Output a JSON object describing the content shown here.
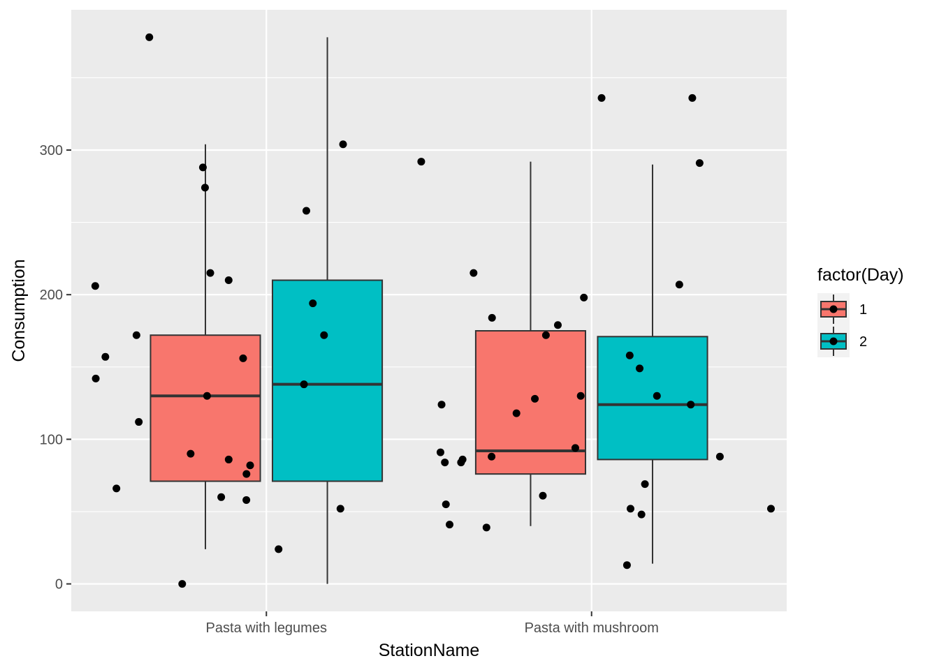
{
  "chart_data": {
    "type": "box",
    "title": "",
    "xlabel": "StationName",
    "ylabel": "Consumption",
    "categories": [
      "Pasta with legumes",
      "Pasta with mushroom"
    ],
    "ylim": [
      -19,
      397
    ],
    "yticks": [
      0,
      100,
      200,
      300
    ],
    "grid": true,
    "legend": {
      "title": "factor(Day)",
      "position": "right",
      "entries": [
        {
          "label": "1",
          "color": "#F8766D"
        },
        {
          "label": "2",
          "color": "#00BFC4"
        }
      ]
    },
    "boxes": [
      {
        "category": "Pasta with legumes",
        "group": "1",
        "whisker_low": 24,
        "q1": 71,
        "median": 130,
        "q3": 172,
        "whisker_high": 304
      },
      {
        "category": "Pasta with legumes",
        "group": "2",
        "whisker_low": 0,
        "q1": 71,
        "median": 138,
        "q3": 210,
        "whisker_high": 378
      },
      {
        "category": "Pasta with mushroom",
        "group": "1",
        "whisker_low": 40,
        "q1": 76,
        "median": 92,
        "q3": 175,
        "whisker_high": 292
      },
      {
        "category": "Pasta with mushroom",
        "group": "2",
        "whisker_low": 14,
        "q1": 86,
        "median": 124,
        "q3": 171,
        "whisker_high": 290
      }
    ],
    "points": [
      {
        "category": "Pasta with legumes",
        "group": "1",
        "y": 288
      },
      {
        "category": "Pasta with legumes",
        "group": "1",
        "y": 60
      },
      {
        "category": "Pasta with legumes",
        "group": "1",
        "y": 157
      },
      {
        "category": "Pasta with legumes",
        "group": "1",
        "y": 112
      },
      {
        "category": "Pasta with legumes",
        "group": "1",
        "y": 90
      },
      {
        "category": "Pasta with legumes",
        "group": "1",
        "y": 130
      },
      {
        "category": "Pasta with legumes",
        "group": "1",
        "y": 142
      },
      {
        "category": "Pasta with legumes",
        "group": "1",
        "y": 138
      },
      {
        "category": "Pasta with legumes",
        "group": "1",
        "y": 210
      },
      {
        "category": "Pasta with legumes",
        "group": "1",
        "y": 0
      },
      {
        "category": "Pasta with legumes",
        "group": "1",
        "y": 378
      },
      {
        "category": "Pasta with legumes",
        "group": "1",
        "y": 24
      },
      {
        "category": "Pasta with legumes",
        "group": "1",
        "y": 58
      },
      {
        "category": "Pasta with legumes",
        "group": "1",
        "y": 206
      },
      {
        "category": "Pasta with legumes",
        "group": "1",
        "y": 274
      },
      {
        "category": "Pasta with legumes",
        "group": "1",
        "y": 172
      },
      {
        "category": "Pasta with legumes",
        "group": "1",
        "y": 82
      },
      {
        "category": "Pasta with legumes",
        "group": "1",
        "y": 66
      },
      {
        "category": "Pasta with legumes",
        "group": "2",
        "y": 304
      },
      {
        "category": "Pasta with legumes",
        "group": "2",
        "y": 172
      },
      {
        "category": "Pasta with legumes",
        "group": "2",
        "y": 156
      },
      {
        "category": "Pasta with legumes",
        "group": "2",
        "y": 215
      },
      {
        "category": "Pasta with legumes",
        "group": "2",
        "y": 124
      },
      {
        "category": "Pasta with legumes",
        "group": "2",
        "y": 41
      },
      {
        "category": "Pasta with legumes",
        "group": "2",
        "y": 86
      },
      {
        "category": "Pasta with legumes",
        "group": "2",
        "y": 194
      },
      {
        "category": "Pasta with legumes",
        "group": "2",
        "y": 55
      },
      {
        "category": "Pasta with legumes",
        "group": "2",
        "y": 76
      },
      {
        "category": "Pasta with legumes",
        "group": "2",
        "y": 258
      },
      {
        "category": "Pasta with legumes",
        "group": "2",
        "y": 52
      },
      {
        "category": "Pasta with mushroom",
        "group": "1",
        "y": 94
      },
      {
        "category": "Pasta with mushroom",
        "group": "1",
        "y": 215
      },
      {
        "category": "Pasta with mushroom",
        "group": "1",
        "y": 84
      },
      {
        "category": "Pasta with mushroom",
        "group": "1",
        "y": 130
      },
      {
        "category": "Pasta with mushroom",
        "group": "1",
        "y": 118
      },
      {
        "category": "Pasta with mushroom",
        "group": "1",
        "y": 84
      },
      {
        "category": "Pasta with mushroom",
        "group": "1",
        "y": 61
      },
      {
        "category": "Pasta with mushroom",
        "group": "1",
        "y": 39
      },
      {
        "category": "Pasta with mushroom",
        "group": "1",
        "y": 91
      },
      {
        "category": "Pasta with mushroom",
        "group": "1",
        "y": 336
      },
      {
        "category": "Pasta with mushroom",
        "group": "1",
        "y": 184
      },
      {
        "category": "Pasta with mushroom",
        "group": "1",
        "y": 88
      },
      {
        "category": "Pasta with mushroom",
        "group": "1",
        "y": 292
      },
      {
        "category": "Pasta with mushroom",
        "group": "1",
        "y": 48
      },
      {
        "category": "Pasta with mushroom",
        "group": "1",
        "y": 86
      },
      {
        "category": "Pasta with mushroom",
        "group": "1",
        "y": 52
      },
      {
        "category": "Pasta with mushroom",
        "group": "2",
        "y": 69
      },
      {
        "category": "Pasta with mushroom",
        "group": "2",
        "y": 198
      },
      {
        "category": "Pasta with mushroom",
        "group": "2",
        "y": 207
      },
      {
        "category": "Pasta with mushroom",
        "group": "2",
        "y": 13
      },
      {
        "category": "Pasta with mushroom",
        "group": "2",
        "y": 88
      },
      {
        "category": "Pasta with mushroom",
        "group": "2",
        "y": 336
      },
      {
        "category": "Pasta with mushroom",
        "group": "2",
        "y": 179
      },
      {
        "category": "Pasta with mushroom",
        "group": "2",
        "y": 130
      },
      {
        "category": "Pasta with mushroom",
        "group": "2",
        "y": 149
      },
      {
        "category": "Pasta with mushroom",
        "group": "2",
        "y": 172
      },
      {
        "category": "Pasta with mushroom",
        "group": "2",
        "y": 128
      },
      {
        "category": "Pasta with mushroom",
        "group": "2",
        "y": 158
      },
      {
        "category": "Pasta with mushroom",
        "group": "2",
        "y": 291
      },
      {
        "category": "Pasta with mushroom",
        "group": "2",
        "y": 124
      },
      {
        "category": "Pasta with mushroom",
        "group": "2",
        "y": 52
      }
    ]
  },
  "colors": {
    "panel_background": "#EBEBEB",
    "grid": "#FFFFFF",
    "outline": "#333333",
    "point": "#000000"
  }
}
